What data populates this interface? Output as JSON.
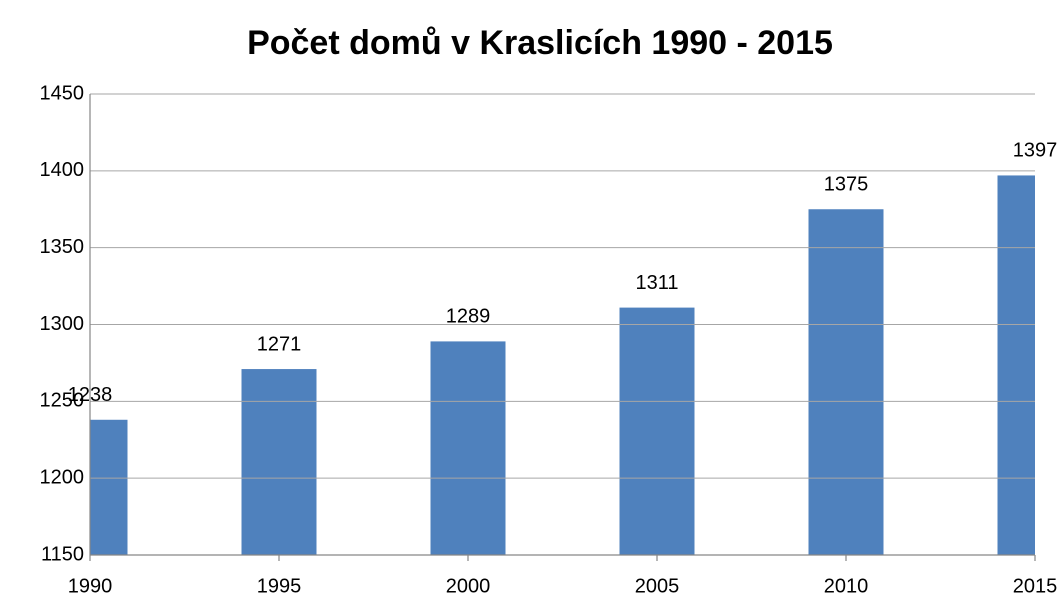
{
  "chart_data": {
    "type": "bar",
    "title": "Počet domů v Kraslicích 1990 - 2015",
    "x": [
      1990,
      1995,
      2000,
      2005,
      2010,
      2015
    ],
    "values": [
      1238,
      1271,
      1289,
      1311,
      1375,
      1397
    ],
    "color": "#4f81bd",
    "xlim": [
      1990,
      2015
    ],
    "xticks": [
      1990,
      1995,
      2000,
      2005,
      2010,
      2015
    ],
    "ylim": [
      1150,
      1450
    ],
    "yticks": [
      1150,
      1200,
      1250,
      1300,
      1350,
      1400,
      1450
    ],
    "grid": true
  }
}
